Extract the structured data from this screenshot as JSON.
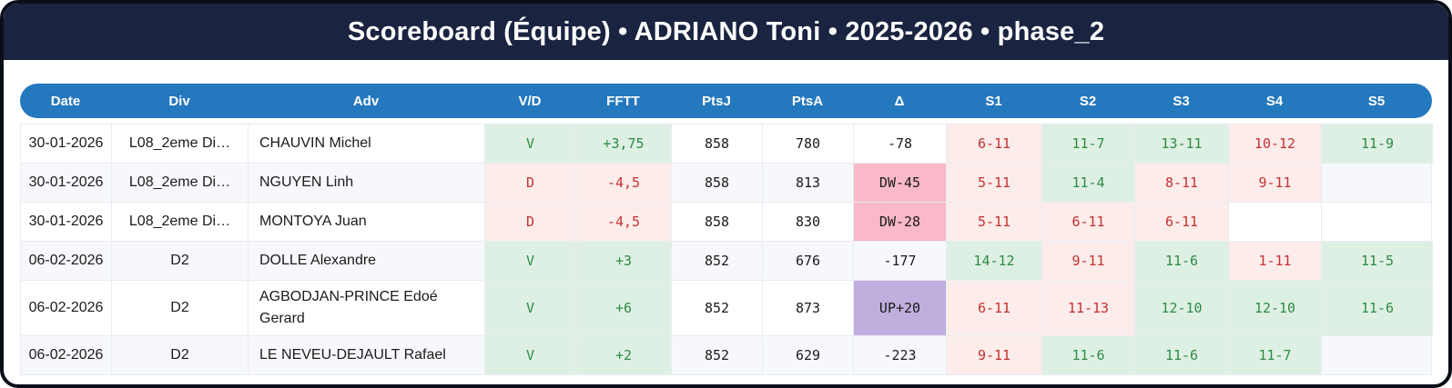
{
  "title": "Scoreboard (Équipe) • ADRIANO Toni • 2025-2026 • phase_2",
  "colors": {
    "title_bar": "#1a2340",
    "header_row": "#2478be",
    "win_bg": "#def0e4",
    "win_text": "#2e8b44",
    "loss_bg": "#fcecea",
    "loss_text": "#c43131",
    "delta_down_bg": "#f9b9c8",
    "delta_up_bg": "#bfaede"
  },
  "table": {
    "columns": [
      "Date",
      "Div",
      "Adv",
      "V/D",
      "FFTT",
      "PtsJ",
      "PtsA",
      "Δ",
      "S1",
      "S2",
      "S3",
      "S4",
      "S5"
    ],
    "rows": [
      {
        "date": "30-01-2026",
        "div": "L08_2eme Di…",
        "adv": "CHAUVIN Michel",
        "vd": "V",
        "result": "win",
        "fftt": "+3,75",
        "ptsj": "858",
        "ptsa": "780",
        "delta": "-78",
        "delta_type": "none",
        "sets": [
          {
            "score": "6-11",
            "outcome": "loss"
          },
          {
            "score": "11-7",
            "outcome": "win"
          },
          {
            "score": "13-11",
            "outcome": "win"
          },
          {
            "score": "10-12",
            "outcome": "loss"
          },
          {
            "score": "11-9",
            "outcome": "win"
          }
        ]
      },
      {
        "date": "30-01-2026",
        "div": "L08_2eme Di…",
        "adv": "NGUYEN Linh",
        "vd": "D",
        "result": "loss",
        "fftt": "-4,5",
        "ptsj": "858",
        "ptsa": "813",
        "delta": "DW-45",
        "delta_type": "down",
        "sets": [
          {
            "score": "5-11",
            "outcome": "loss"
          },
          {
            "score": "11-4",
            "outcome": "win"
          },
          {
            "score": "8-11",
            "outcome": "loss"
          },
          {
            "score": "9-11",
            "outcome": "loss"
          },
          {
            "score": "",
            "outcome": "none"
          }
        ]
      },
      {
        "date": "30-01-2026",
        "div": "L08_2eme Di…",
        "adv": "MONTOYA Juan",
        "vd": "D",
        "result": "loss",
        "fftt": "-4,5",
        "ptsj": "858",
        "ptsa": "830",
        "delta": "DW-28",
        "delta_type": "down",
        "sets": [
          {
            "score": "5-11",
            "outcome": "loss"
          },
          {
            "score": "6-11",
            "outcome": "loss"
          },
          {
            "score": "6-11",
            "outcome": "loss"
          },
          {
            "score": "",
            "outcome": "none"
          },
          {
            "score": "",
            "outcome": "none"
          }
        ]
      },
      {
        "date": "06-02-2026",
        "div": "D2",
        "adv": "DOLLE Alexandre",
        "vd": "V",
        "result": "win",
        "fftt": "+3",
        "ptsj": "852",
        "ptsa": "676",
        "delta": "-177",
        "delta_type": "none",
        "sets": [
          {
            "score": "14-12",
            "outcome": "win"
          },
          {
            "score": "9-11",
            "outcome": "loss"
          },
          {
            "score": "11-6",
            "outcome": "win"
          },
          {
            "score": "1-11",
            "outcome": "loss"
          },
          {
            "score": "11-5",
            "outcome": "win"
          }
        ]
      },
      {
        "date": "06-02-2026",
        "div": "D2",
        "adv": "AGBODJAN-PRINCE Edoé Gerard",
        "vd": "V",
        "result": "win",
        "fftt": "+6",
        "ptsj": "852",
        "ptsa": "873",
        "delta": "UP+20",
        "delta_type": "up",
        "sets": [
          {
            "score": "6-11",
            "outcome": "loss"
          },
          {
            "score": "11-13",
            "outcome": "loss"
          },
          {
            "score": "12-10",
            "outcome": "win"
          },
          {
            "score": "12-10",
            "outcome": "win"
          },
          {
            "score": "11-6",
            "outcome": "win"
          }
        ]
      },
      {
        "date": "06-02-2026",
        "div": "D2",
        "adv": "LE NEVEU-DEJAULT Rafael",
        "vd": "V",
        "result": "win",
        "fftt": "+2",
        "ptsj": "852",
        "ptsa": "629",
        "delta": "-223",
        "delta_type": "none",
        "sets": [
          {
            "score": "9-11",
            "outcome": "loss"
          },
          {
            "score": "11-6",
            "outcome": "win"
          },
          {
            "score": "11-6",
            "outcome": "win"
          },
          {
            "score": "11-7",
            "outcome": "win"
          },
          {
            "score": "",
            "outcome": "none"
          }
        ]
      }
    ]
  }
}
